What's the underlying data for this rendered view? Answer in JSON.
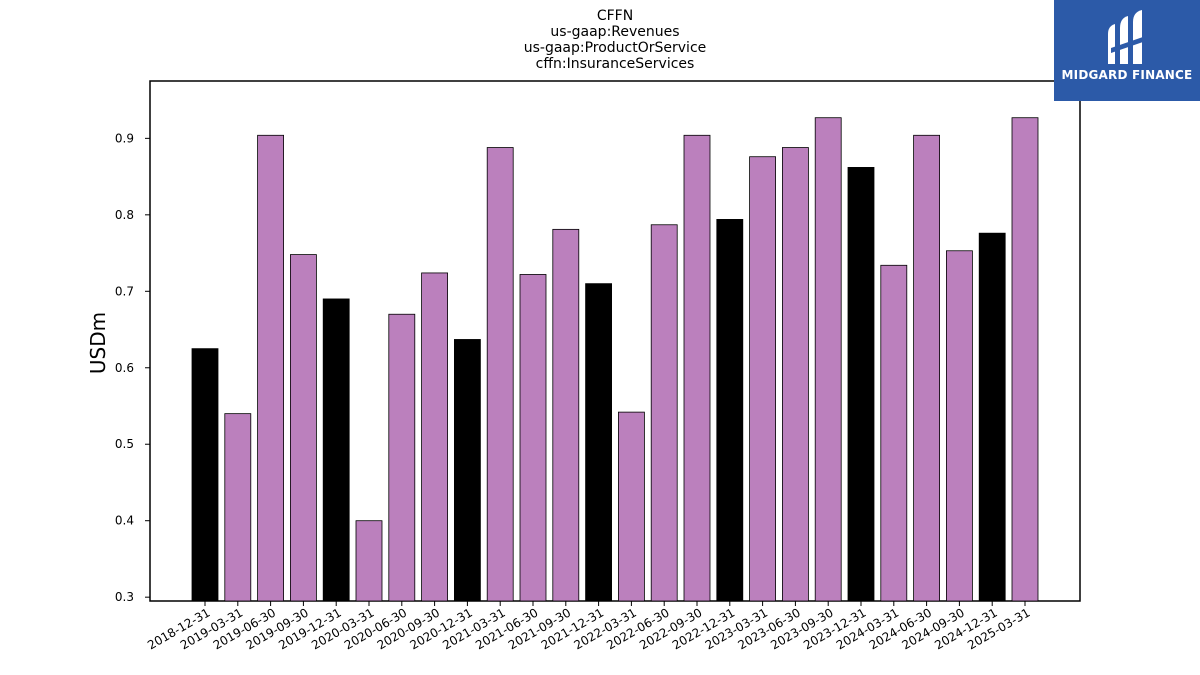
{
  "chart_data": {
    "type": "bar",
    "title_lines": [
      "CFFN",
      "us-gaap:Revenues",
      "us-gaap:ProductOrService",
      "cffn:InsuranceServices"
    ],
    "xlabel": "",
    "ylabel": "USDm",
    "ylim": [
      0.295,
      0.975
    ],
    "yticks": [
      0.3,
      0.4,
      0.5,
      0.6,
      0.7,
      0.8,
      0.9
    ],
    "grid": false,
    "categories": [
      "2018-12-31",
      "2019-03-31",
      "2019-06-30",
      "2019-09-30",
      "2019-12-31",
      "2020-03-31",
      "2020-06-30",
      "2020-09-30",
      "2020-12-31",
      "2021-03-31",
      "2021-06-30",
      "2021-09-30",
      "2021-12-31",
      "2022-03-31",
      "2022-06-30",
      "2022-09-30",
      "2022-12-31",
      "2023-03-31",
      "2023-06-30",
      "2023-09-30",
      "2023-12-31",
      "2024-03-31",
      "2024-06-30",
      "2024-09-30",
      "2024-12-31",
      "2025-03-31"
    ],
    "values": [
      0.625,
      0.54,
      0.904,
      0.748,
      0.69,
      0.4,
      0.67,
      0.724,
      0.637,
      0.888,
      0.722,
      0.781,
      0.71,
      0.542,
      0.787,
      0.904,
      0.794,
      0.876,
      0.888,
      0.927,
      0.862,
      0.734,
      0.904,
      0.753,
      0.776,
      0.927
    ],
    "colors": {
      "annual": "#000000",
      "quarterly": "#bb80bd",
      "edge": "#000000"
    },
    "bar_kind": [
      "annual",
      "quarterly",
      "quarterly",
      "quarterly",
      "annual",
      "quarterly",
      "quarterly",
      "quarterly",
      "annual",
      "quarterly",
      "quarterly",
      "quarterly",
      "annual",
      "quarterly",
      "quarterly",
      "quarterly",
      "annual",
      "quarterly",
      "quarterly",
      "quarterly",
      "annual",
      "quarterly",
      "quarterly",
      "quarterly",
      "annual",
      "quarterly"
    ]
  },
  "logo": {
    "text": "MIDGARD FINANCE",
    "background": "#2c5aa8",
    "icon": "midgard-logo-icon"
  }
}
